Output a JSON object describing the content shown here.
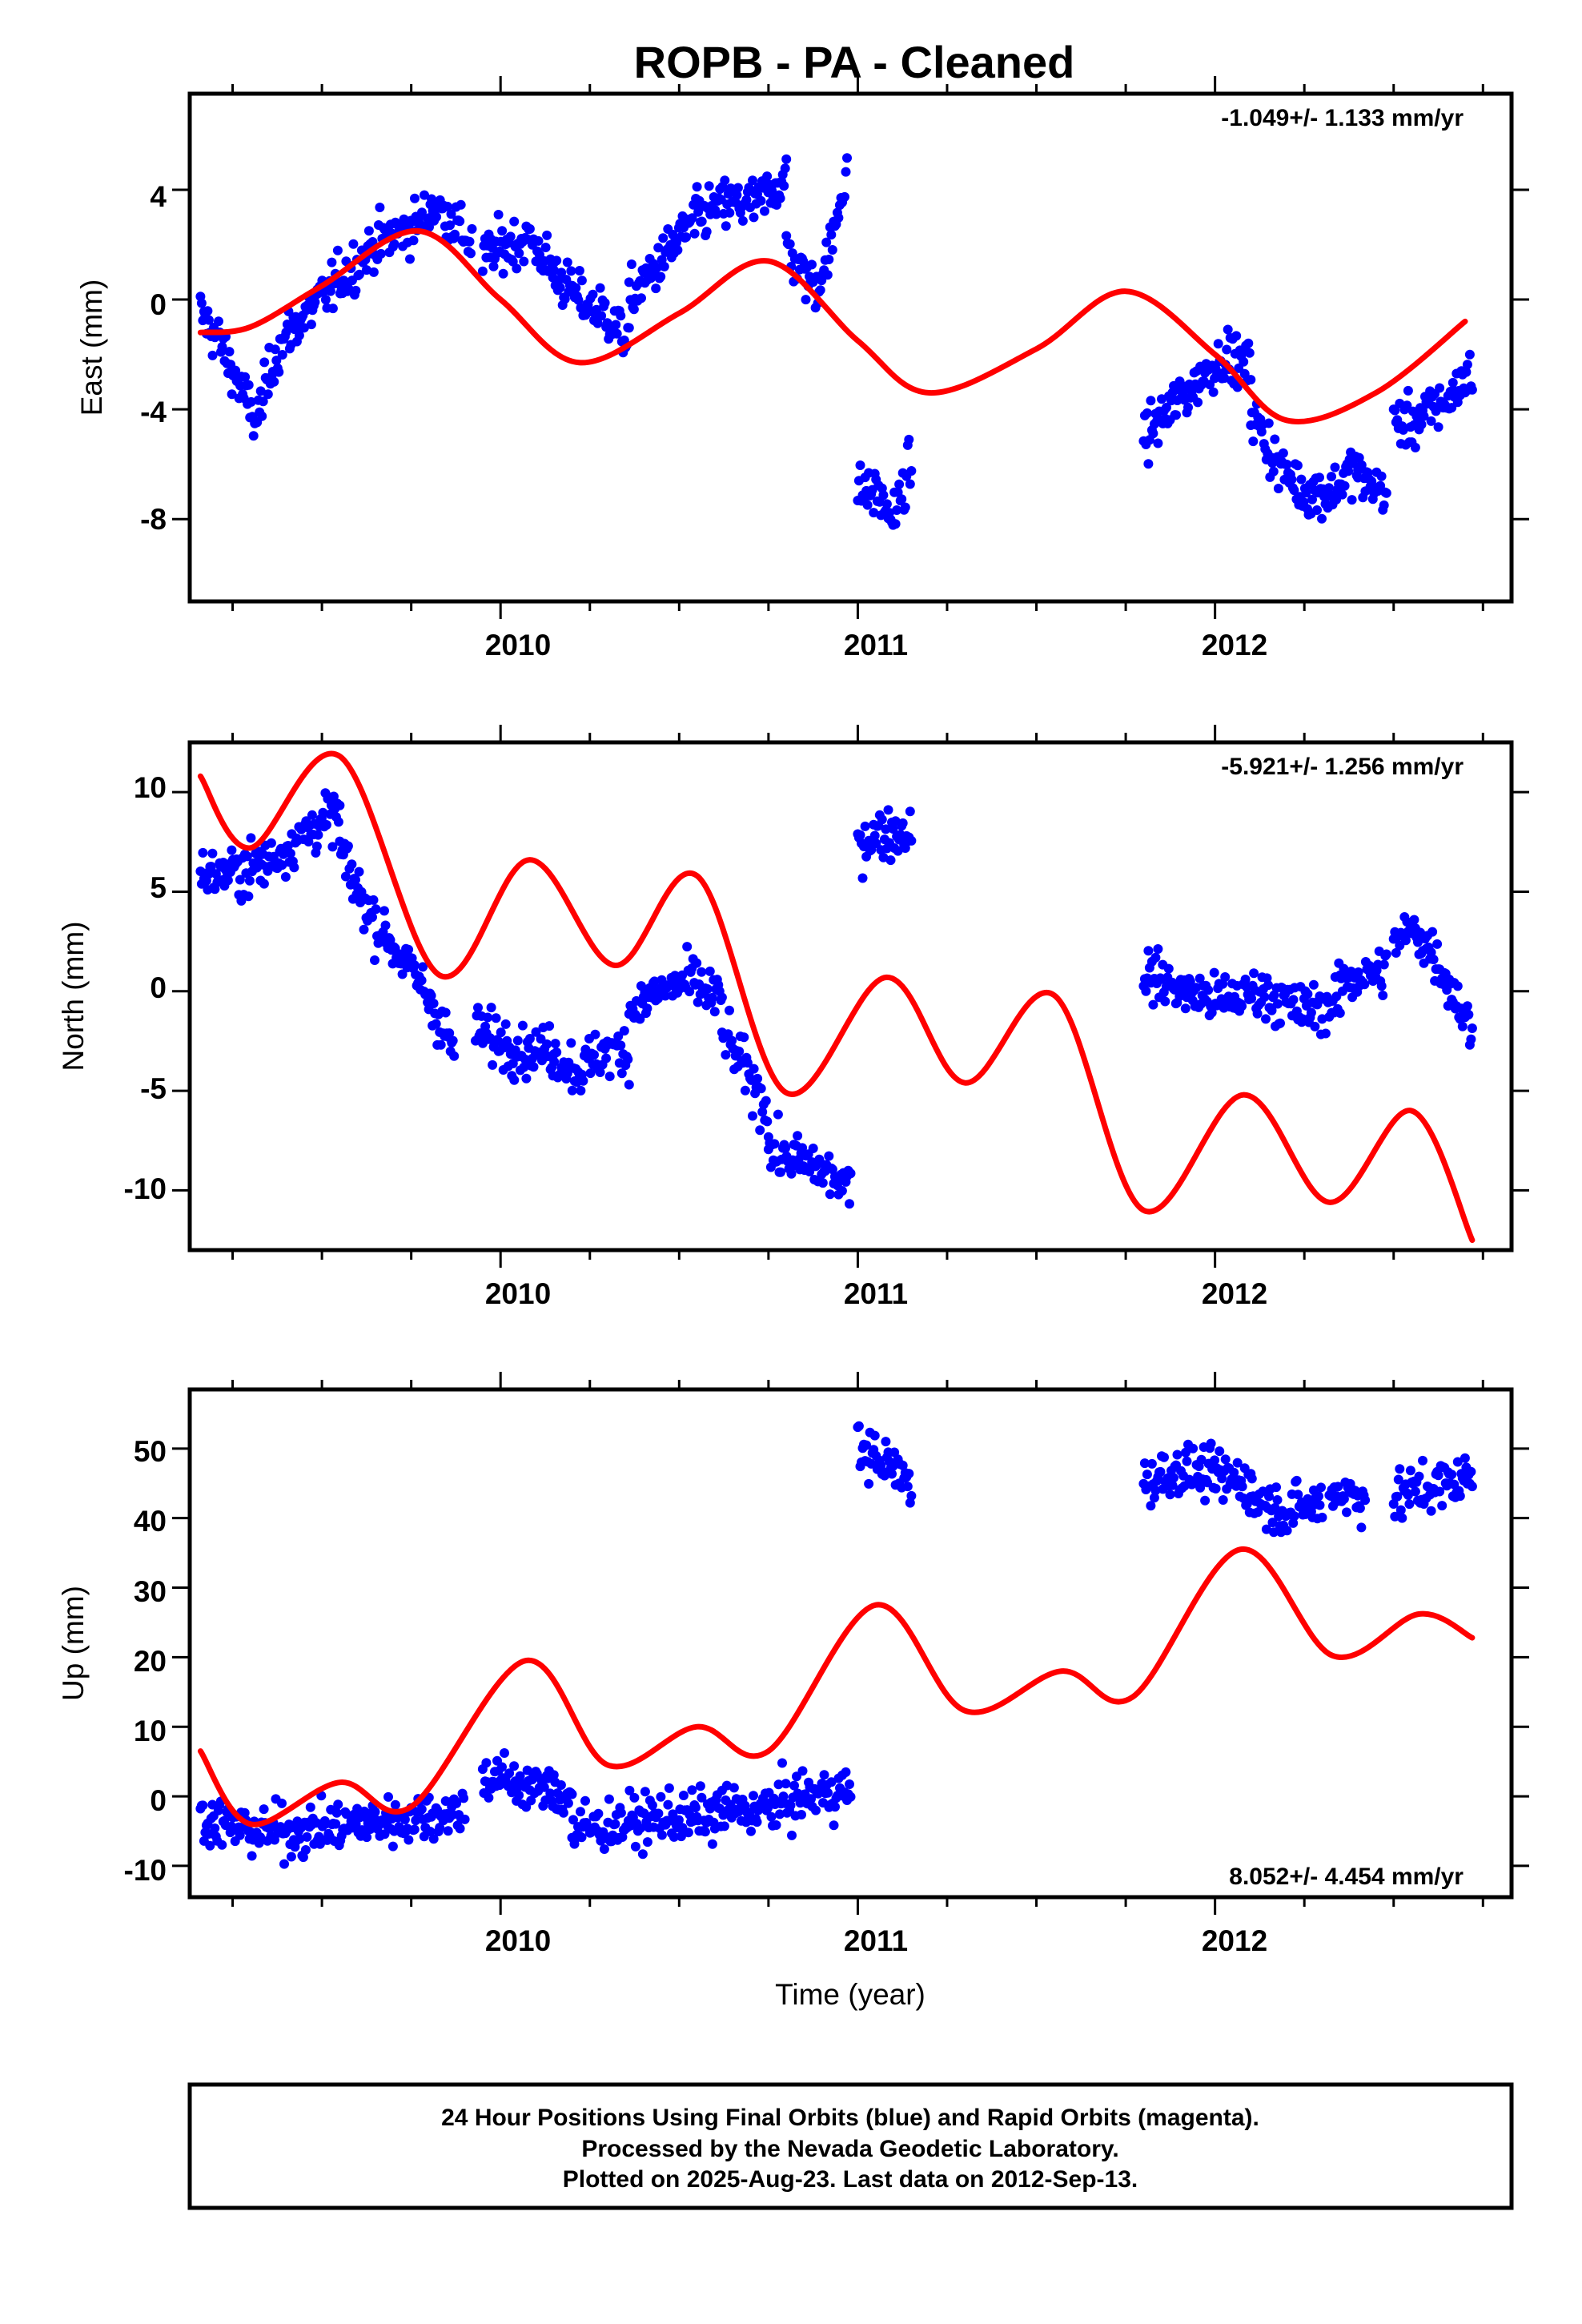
{
  "title": "ROPB  - PA - Cleaned",
  "colors": {
    "dots": "#0000ff",
    "model": "#ff0000",
    "frame": "#000000"
  },
  "xaxis": {
    "label": "Time (year)",
    "ticks": [
      "2010",
      "2011",
      "2012"
    ]
  },
  "footer": {
    "line1": "24 Hour Positions Using Final Orbits (blue) and Rapid Orbits (magenta).",
    "line2": "Processed by the Nevada Geodetic Laboratory.",
    "line3": "Plotted on 2025-Aug-23. Last data on 2012-Sep-13."
  },
  "panels": [
    {
      "key": "east",
      "ylabel": "East (mm)",
      "rate": "-1.049+/- 1.133 mm/yr",
      "yticks": [
        "4",
        "0",
        "-4",
        "-8"
      ]
    },
    {
      "key": "north",
      "ylabel": "North (mm)",
      "rate": "-5.921+/- 1.256 mm/yr",
      "yticks": [
        "10",
        "5",
        "0",
        "-5",
        "-10"
      ]
    },
    {
      "key": "up",
      "ylabel": "Up (mm)",
      "rate": "8.052+/- 4.454 mm/yr",
      "yticks": [
        "50",
        "40",
        "30",
        "20",
        "10",
        "0",
        "-10"
      ]
    }
  ],
  "chart_data": [
    {
      "type": "scatter",
      "ylabel": "East (mm)",
      "xlim": [
        2009.13,
        2012.83
      ],
      "ylim": [
        -11,
        7.5
      ],
      "yticks": [
        -8,
        -4,
        0,
        4
      ],
      "xticks": [
        2010,
        2011,
        2012
      ],
      "annotation": "-1.049+/- 1.133 mm/yr",
      "series": [
        {
          "role": "observations",
          "segments": [
            {
              "t0": 2009.16,
              "t1": 2009.42,
              "y": [
                -0.5,
                -1.5,
                -3,
                -4.5,
                -2,
                -1
              ]
            },
            {
              "t0": 2009.42,
              "t1": 2009.8,
              "y": [
                -1,
                0,
                1,
                2,
                2.5,
                3
              ]
            },
            {
              "t0": 2009.8,
              "t1": 2009.92,
              "y": [
                3.5,
                3,
                2
              ]
            },
            {
              "t0": 2009.95,
              "t1": 2010.15,
              "y": [
                1.5,
                2,
                2.2,
                1
              ]
            },
            {
              "t0": 2010.15,
              "t1": 2010.36,
              "y": [
                1,
                0,
                -0.5,
                -1.5
              ]
            },
            {
              "t0": 2010.36,
              "t1": 2010.55,
              "y": [
                0,
                1,
                2,
                3
              ]
            },
            {
              "t0": 2010.55,
              "t1": 2010.8,
              "y": [
                3,
                3.5,
                3.5,
                4.5
              ]
            },
            {
              "t0": 2010.8,
              "t1": 2010.97,
              "y": [
                2,
                1,
                0.5,
                2,
                5
              ]
            },
            {
              "t0": 2011.0,
              "t1": 2011.15,
              "y": [
                -7,
                -7,
                -8,
                -6
              ]
            },
            {
              "t0": 2011.8,
              "t1": 2012.1,
              "y": [
                -5,
                -4,
                -3,
                -2,
                -2.5
              ]
            },
            {
              "t0": 2012.1,
              "t1": 2012.4,
              "y": [
                -4,
                -6,
                -7,
                -7,
                -6
              ]
            },
            {
              "t0": 2012.4,
              "t1": 2012.48,
              "y": [
                -6.5,
                -7
              ]
            },
            {
              "t0": 2012.5,
              "t1": 2012.72,
              "y": [
                -4.5,
                -4.5,
                -4,
                -3.5,
                -2.5
              ]
            }
          ]
        },
        {
          "role": "model",
          "x": [
            2009.16,
            2009.3,
            2009.5,
            2009.77,
            2010.0,
            2010.22,
            2010.5,
            2010.75,
            2011.0,
            2011.2,
            2011.5,
            2011.75,
            2012.0,
            2012.2,
            2012.45,
            2012.7
          ],
          "y": [
            -1.2,
            -1.0,
            0.5,
            2.5,
            0.0,
            -2.3,
            -0.5,
            1.4,
            -1.5,
            -3.4,
            -1.8,
            0.3,
            -2.0,
            -4.4,
            -3.4,
            -0.8
          ]
        }
      ]
    },
    {
      "type": "scatter",
      "ylabel": "North (mm)",
      "xlim": [
        2009.13,
        2012.83
      ],
      "ylim": [
        -13,
        12.5
      ],
      "yticks": [
        -10,
        -5,
        0,
        5,
        10
      ],
      "xticks": [
        2010,
        2011,
        2012
      ],
      "annotation": "-5.921+/- 1.256 mm/yr",
      "series": [
        {
          "role": "observations",
          "segments": [
            {
              "t0": 2009.16,
              "t1": 2009.55,
              "y": [
                5.8,
                6,
                6.5,
                8,
                9
              ]
            },
            {
              "t0": 2009.55,
              "t1": 2009.87,
              "y": [
                7,
                4,
                2,
                0,
                -3
              ]
            },
            {
              "t0": 2009.93,
              "t1": 2010.15,
              "y": [
                -2,
                -2.5,
                -3,
                -3
              ]
            },
            {
              "t0": 2010.15,
              "t1": 2010.36,
              "y": [
                -3.2,
                -4,
                -3,
                -3
              ]
            },
            {
              "t0": 2010.36,
              "t1": 2010.62,
              "y": [
                -1,
                0,
                0.5,
                -0.5
              ]
            },
            {
              "t0": 2010.62,
              "t1": 2010.75,
              "y": [
                -2,
                -4,
                -6
              ]
            },
            {
              "t0": 2010.75,
              "t1": 2010.98,
              "y": [
                -8,
                -8.5,
                -9,
                -10
              ]
            },
            {
              "t0": 2011.0,
              "t1": 2011.15,
              "y": [
                7.5,
                8,
                8
              ]
            },
            {
              "t0": 2011.8,
              "t1": 2012.35,
              "y": [
                1,
                0,
                -0.5,
                0,
                -1,
                -0.5
              ]
            },
            {
              "t0": 2012.35,
              "t1": 2012.48,
              "y": [
                0.5,
                1
              ]
            },
            {
              "t0": 2012.5,
              "t1": 2012.72,
              "y": [
                2.5,
                3,
                2,
                0,
                -2
              ]
            }
          ]
        },
        {
          "role": "model",
          "x": [
            2009.16,
            2009.3,
            2009.55,
            2009.83,
            2010.08,
            2010.32,
            2010.55,
            2010.8,
            2011.08,
            2011.3,
            2011.55,
            2011.8,
            2012.08,
            2012.32,
            2012.55,
            2012.72
          ],
          "y": [
            10.8,
            7.2,
            11.8,
            0.8,
            6.6,
            1.3,
            5.8,
            -5.1,
            0.7,
            -4.6,
            -0.2,
            -11.0,
            -5.2,
            -10.6,
            -6.0,
            -12.5
          ]
        }
      ]
    },
    {
      "type": "scatter",
      "ylabel": "Up (mm)",
      "xlim": [
        2009.13,
        2012.83
      ],
      "ylim": [
        -14.5,
        58.5
      ],
      "yticks": [
        -10,
        0,
        10,
        20,
        30,
        40,
        50
      ],
      "xticks": [
        2010,
        2011,
        2012
      ],
      "annotation": "8.052+/- 4.454 mm/yr",
      "series": [
        {
          "role": "observations",
          "segments": [
            {
              "t0": 2009.16,
              "t1": 2009.9,
              "y": [
                -3,
                -5,
                -5,
                -4,
                -3,
                -2
              ]
            },
            {
              "t0": 2009.95,
              "t1": 2010.2,
              "y": [
                3,
                2,
                1,
                0
              ]
            },
            {
              "t0": 2010.2,
              "t1": 2010.6,
              "y": [
                -5,
                -4,
                -3,
                -3
              ]
            },
            {
              "t0": 2010.6,
              "t1": 2010.98,
              "y": [
                -2,
                -2,
                0,
                1
              ]
            },
            {
              "t0": 2011.0,
              "t1": 2011.15,
              "y": [
                50,
                48,
                45
              ]
            },
            {
              "t0": 2011.8,
              "t1": 2012.1,
              "y": [
                45,
                47,
                46,
                45
              ]
            },
            {
              "t0": 2012.1,
              "t1": 2012.3,
              "y": [
                43,
                41,
                42
              ]
            },
            {
              "t0": 2012.32,
              "t1": 2012.42,
              "y": [
                44,
                43
              ]
            },
            {
              "t0": 2012.5,
              "t1": 2012.72,
              "y": [
                43,
                44,
                45,
                46
              ]
            }
          ]
        },
        {
          "role": "model",
          "x": [
            2009.16,
            2009.3,
            2009.55,
            2009.75,
            2010.07,
            2010.3,
            2010.55,
            2010.75,
            2011.05,
            2011.3,
            2011.57,
            2011.77,
            2012.07,
            2012.33,
            2012.57,
            2012.72
          ],
          "y": [
            6.5,
            -4,
            2,
            -1.5,
            19.5,
            4.5,
            10,
            6.5,
            27.5,
            12.3,
            18,
            14.3,
            35.5,
            20.2,
            26.2,
            22.8
          ]
        }
      ]
    }
  ]
}
